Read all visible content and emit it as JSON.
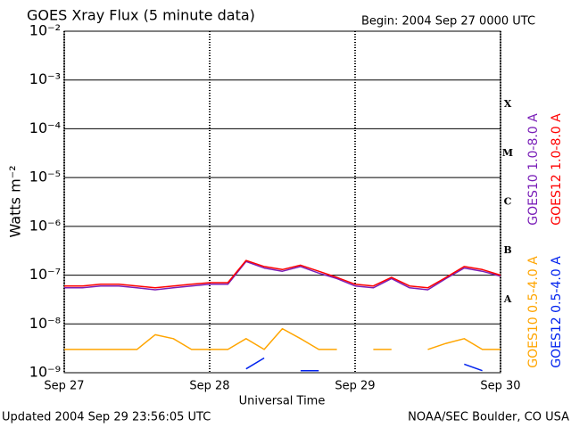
{
  "chart_data": {
    "type": "line",
    "title": "GOES Xray Flux (5 minute data)",
    "subtitle": "Begin:  2004 Sep 27 0000 UTC",
    "x_label": "Universal Time",
    "y_label": "Watts m⁻²",
    "footer_left": "Updated 2004 Sep 29 23:56:05 UTC",
    "footer_right": "NOAA/SEC Boulder, CO USA",
    "log_scale": true,
    "grid": true,
    "class_labels": [
      "A",
      "B",
      "C",
      "M",
      "X"
    ],
    "xlim": [
      "2004-09-27T00:00",
      "2004-09-30T00:00"
    ],
    "xticks": [
      {
        "value": "2004-09-27T00:00",
        "label": "Sep 27"
      },
      {
        "value": "2004-09-28T00:00",
        "label": "Sep 28"
      },
      {
        "value": "2004-09-29T00:00",
        "label": "Sep 29"
      },
      {
        "value": "2004-09-30T00:00",
        "label": "Sep 30"
      }
    ],
    "ylim": [
      1e-09,
      0.01
    ],
    "yticks": [
      {
        "value": 1e-09,
        "label": "10⁻⁹"
      },
      {
        "value": 1e-08,
        "label": "10⁻⁸"
      },
      {
        "value": 1e-07,
        "label": "10⁻⁷"
      },
      {
        "value": 1e-06,
        "label": "10⁻⁶"
      },
      {
        "value": 1e-05,
        "label": "10⁻⁵"
      },
      {
        "value": 0.0001,
        "label": "10⁻⁴"
      },
      {
        "value": 0.001,
        "label": "10⁻³"
      },
      {
        "value": 0.01,
        "label": "10⁻²"
      }
    ],
    "x": [
      "2004-09-27T00:00",
      "2004-09-27T03:00",
      "2004-09-27T06:00",
      "2004-09-27T09:00",
      "2004-09-27T12:00",
      "2004-09-27T15:00",
      "2004-09-27T18:00",
      "2004-09-27T21:00",
      "2004-09-28T00:00",
      "2004-09-28T03:00",
      "2004-09-28T06:00",
      "2004-09-28T09:00",
      "2004-09-28T12:00",
      "2004-09-28T15:00",
      "2004-09-28T18:00",
      "2004-09-28T21:00",
      "2004-09-29T00:00",
      "2004-09-29T03:00",
      "2004-09-29T06:00",
      "2004-09-29T09:00",
      "2004-09-29T12:00",
      "2004-09-29T15:00",
      "2004-09-29T18:00",
      "2004-09-29T21:00",
      "2004-09-30T00:00"
    ],
    "series": [
      {
        "name": "GOES10 1.0-8.0 A",
        "color": "#7a1fb8",
        "values": [
          5.5e-08,
          5.5e-08,
          6e-08,
          6e-08,
          5.5e-08,
          5e-08,
          5.5e-08,
          6e-08,
          6.5e-08,
          6.5e-08,
          1.9e-07,
          1.4e-07,
          1.2e-07,
          1.5e-07,
          1.1e-07,
          8.5e-08,
          6e-08,
          5.5e-08,
          8.5e-08,
          5.5e-08,
          5e-08,
          8.5e-08,
          1.4e-07,
          1.2e-07,
          9.5e-08
        ]
      },
      {
        "name": "GOES12 1.0-8.0 A",
        "color": "#ff0000",
        "values": [
          6e-08,
          6e-08,
          6.5e-08,
          6.5e-08,
          6e-08,
          5.5e-08,
          6e-08,
          6.5e-08,
          7e-08,
          7e-08,
          2e-07,
          1.5e-07,
          1.3e-07,
          1.6e-07,
          1.2e-07,
          9e-08,
          6.5e-08,
          6e-08,
          9e-08,
          6e-08,
          5.5e-08,
          9e-08,
          1.5e-07,
          1.3e-07,
          1e-07
        ]
      },
      {
        "name": "GOES10 0.5-4.0 A",
        "color": "#ffa500",
        "values": [
          3e-09,
          3e-09,
          3e-09,
          3e-09,
          3e-09,
          6e-09,
          5e-09,
          3e-09,
          3e-09,
          3e-09,
          5e-09,
          3e-09,
          8e-09,
          5e-09,
          3e-09,
          3e-09,
          null,
          3e-09,
          3e-09,
          null,
          3e-09,
          4e-09,
          5e-09,
          3e-09,
          3e-09
        ]
      },
      {
        "name": "GOES12 0.5-4.0 A",
        "color": "#0022ee",
        "values": [
          null,
          null,
          null,
          null,
          null,
          null,
          null,
          null,
          null,
          null,
          1.2e-09,
          2e-09,
          null,
          1.1e-09,
          1.1e-09,
          null,
          null,
          null,
          null,
          null,
          null,
          null,
          1.5e-09,
          1.1e-09,
          null
        ]
      }
    ]
  }
}
